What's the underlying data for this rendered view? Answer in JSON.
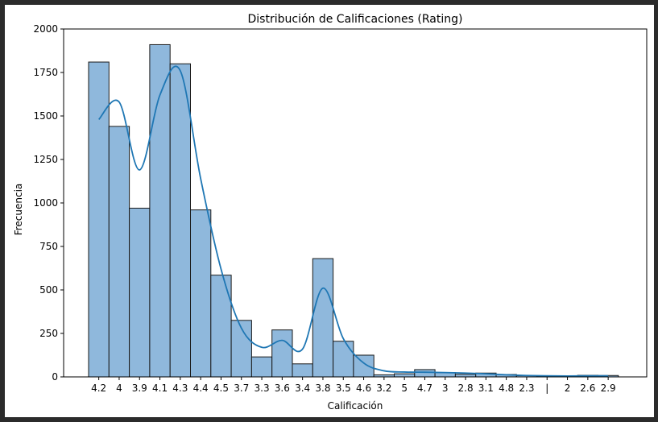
{
  "chart_data": {
    "type": "bar",
    "title": "Distribución de Calificaciones (Rating)",
    "xlabel": "Calificación",
    "ylabel": "Frecuencia",
    "ylim": [
      0,
      2000
    ],
    "yticks": [
      0,
      250,
      500,
      750,
      1000,
      1250,
      1500,
      1750,
      2000
    ],
    "categories": [
      "4.2",
      "4",
      "3.9",
      "4.1",
      "4.3",
      "4.4",
      "4.5",
      "3.7",
      "3.3",
      "3.6",
      "3.4",
      "3.8",
      "3.5",
      "4.6",
      "3.2",
      "5",
      "4.7",
      "3",
      "2.8",
      "3.1",
      "4.8",
      "2.3",
      "|",
      "2",
      "2.6",
      "2.9"
    ],
    "values": [
      1810,
      1440,
      970,
      1910,
      1800,
      960,
      585,
      325,
      115,
      270,
      75,
      680,
      205,
      125,
      12,
      18,
      42,
      25,
      15,
      22,
      14,
      7,
      5,
      3,
      9,
      8
    ],
    "kde": [
      1480,
      1580,
      1190,
      1620,
      1760,
      1140,
      620,
      280,
      170,
      210,
      160,
      510,
      220,
      80,
      35,
      28,
      27,
      25,
      22,
      18,
      12,
      8,
      6,
      5,
      6,
      6
    ],
    "colors": {
      "bar_fill": "#8fb8dc",
      "bar_edge": "#1a1a1a",
      "kde_line": "#1f77b4"
    },
    "grid": false,
    "legend": "none"
  }
}
